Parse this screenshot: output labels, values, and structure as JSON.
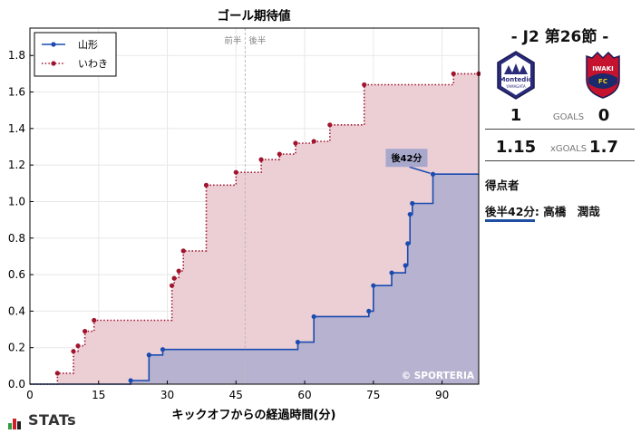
{
  "chart_data": {
    "type": "area",
    "title": "ゴール期待値",
    "xlabel": "キックオフからの経過時間(分)",
    "ylabel": "",
    "xlim": [
      0,
      98
    ],
    "ylim": [
      0,
      1.95
    ],
    "xticks": [
      0,
      15,
      30,
      45,
      60,
      75,
      90
    ],
    "yticks": [
      0.0,
      0.2,
      0.4,
      0.6,
      0.8,
      1.0,
      1.2,
      1.4,
      1.6,
      1.8
    ],
    "halftime_x": 47,
    "half_labels": [
      "前半",
      "後半"
    ],
    "grid": true,
    "legend_position": "top-left",
    "watermark": "© SPORTERIA",
    "series": [
      {
        "name": "山形",
        "color": "#1a4bb0",
        "fill": "#b3b0d0",
        "line_style": "solid",
        "x": [
          0,
          22,
          26,
          29,
          58.5,
          62,
          74,
          75,
          79,
          82,
          82.5,
          83,
          83.5,
          88,
          98
        ],
        "y": [
          0,
          0.02,
          0.16,
          0.19,
          0.23,
          0.37,
          0.4,
          0.54,
          0.61,
          0.65,
          0.77,
          0.93,
          0.99,
          1.15,
          1.15
        ]
      },
      {
        "name": "いわき",
        "color": "#a0152e",
        "fill": "#eccfd5",
        "line_style": "dotted",
        "x": [
          0,
          6,
          9.5,
          10.5,
          12,
          14,
          31,
          31.5,
          32.5,
          33.5,
          38.5,
          45,
          50.5,
          54.5,
          58,
          62,
          65.5,
          73,
          92.5,
          98
        ],
        "y": [
          0,
          0.06,
          0.18,
          0.21,
          0.29,
          0.35,
          0.54,
          0.58,
          0.62,
          0.73,
          1.09,
          1.16,
          1.23,
          1.26,
          1.32,
          1.33,
          1.42,
          1.64,
          1.7,
          1.7
        ]
      }
    ],
    "annotations": [
      {
        "text": "後42分",
        "x": 88,
        "y": 1.15
      }
    ]
  },
  "panel": {
    "match_title": "- J2 第26節 -",
    "home_logo_text": "Montedio",
    "home_logo_sub": "YAMAGATA",
    "away_logo_text": "IWAKI",
    "away_logo_sub": "FC",
    "home_goals": "1",
    "goals_label": "GOALS",
    "away_goals": "0",
    "home_xg": "1.15",
    "xg_label": "xGOALS",
    "away_xg": "1.7",
    "scorers_title": "得点者",
    "scorer_time": "後半42分",
    "scorer_name": ": 高橋　潤哉"
  },
  "brand": "STATs",
  "colors": {
    "home": "#1a4bb0",
    "away": "#a0152e",
    "home_fill": "#b3b0d0",
    "away_fill": "#eccfd5",
    "annotation_bg": "#a7a8cc"
  }
}
